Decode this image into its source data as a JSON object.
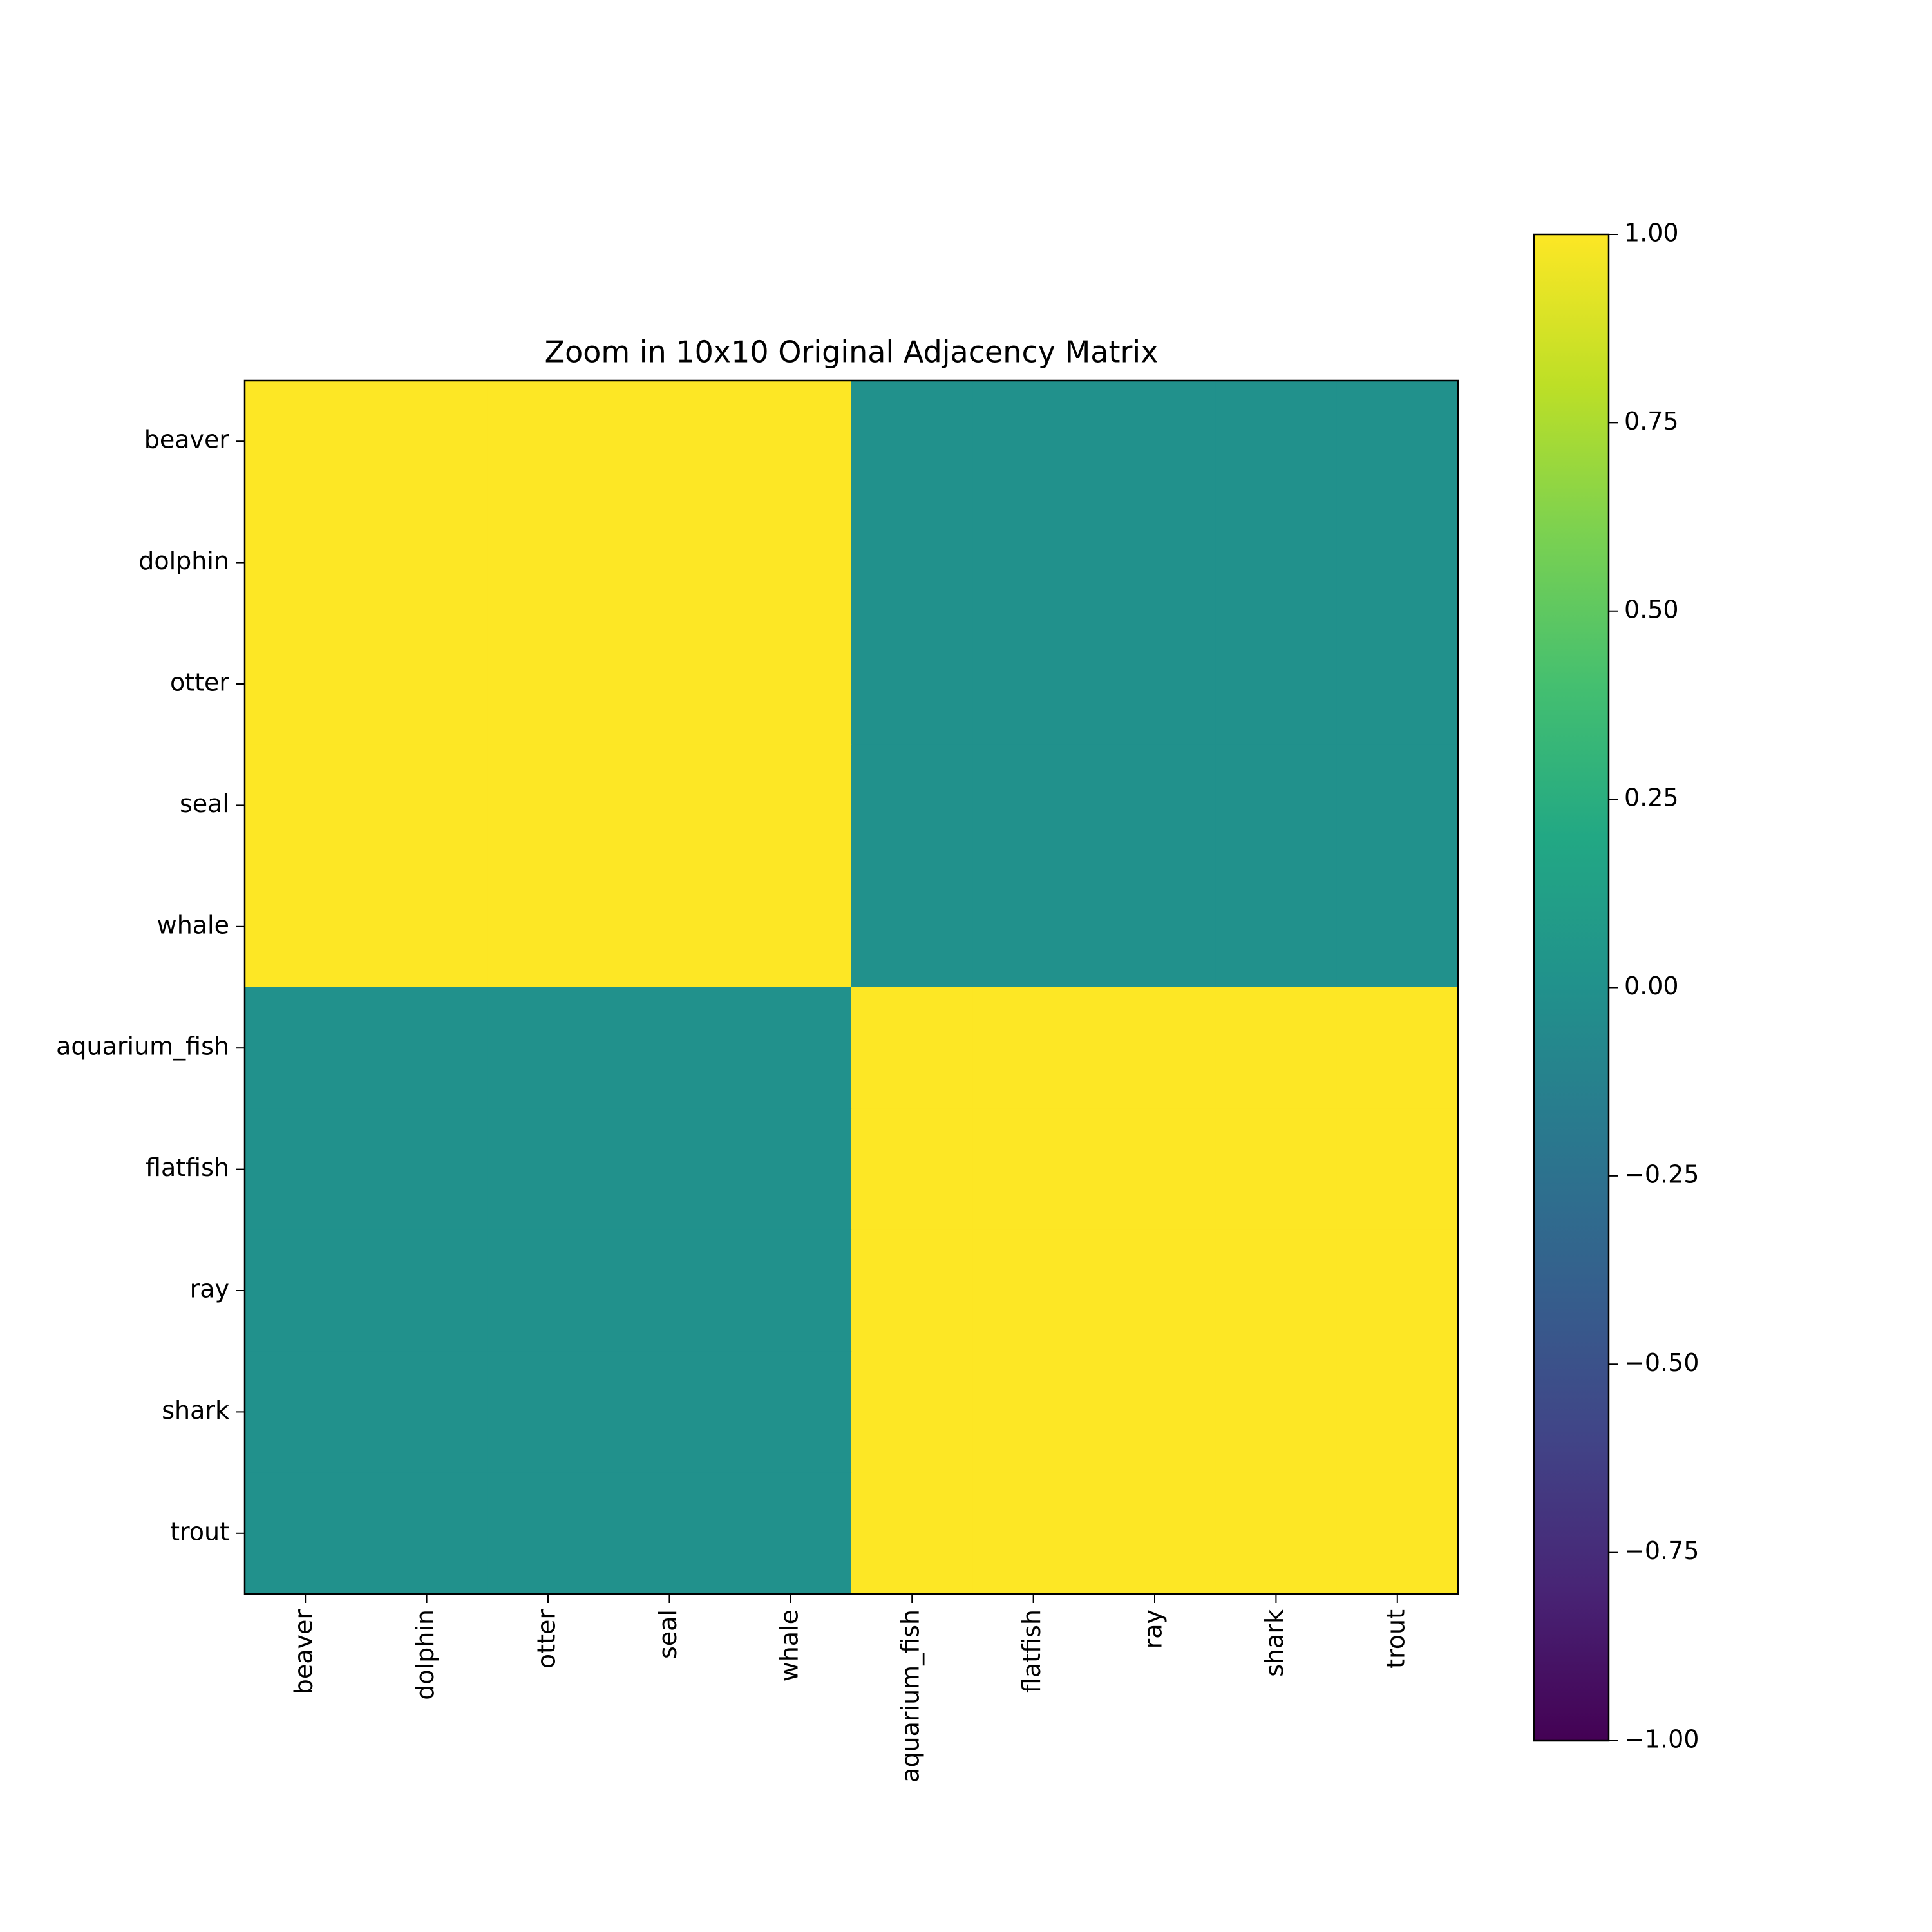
{
  "chart_data": {
    "type": "heatmap",
    "title": "Zoom in 10x10 Original Adjacency Matrix",
    "x_categories": [
      "beaver",
      "dolphin",
      "otter",
      "seal",
      "whale",
      "aquarium_fish",
      "flatfish",
      "ray",
      "shark",
      "trout"
    ],
    "y_categories": [
      "beaver",
      "dolphin",
      "otter",
      "seal",
      "whale",
      "aquarium_fish",
      "flatfish",
      "ray",
      "shark",
      "trout"
    ],
    "z": [
      [
        1,
        1,
        1,
        1,
        1,
        0,
        0,
        0,
        0,
        0
      ],
      [
        1,
        1,
        1,
        1,
        1,
        0,
        0,
        0,
        0,
        0
      ],
      [
        1,
        1,
        1,
        1,
        1,
        0,
        0,
        0,
        0,
        0
      ],
      [
        1,
        1,
        1,
        1,
        1,
        0,
        0,
        0,
        0,
        0
      ],
      [
        1,
        1,
        1,
        1,
        1,
        0,
        0,
        0,
        0,
        0
      ],
      [
        0,
        0,
        0,
        0,
        0,
        1,
        1,
        1,
        1,
        1
      ],
      [
        0,
        0,
        0,
        0,
        0,
        1,
        1,
        1,
        1,
        1
      ],
      [
        0,
        0,
        0,
        0,
        0,
        1,
        1,
        1,
        1,
        1
      ],
      [
        0,
        0,
        0,
        0,
        0,
        1,
        1,
        1,
        1,
        1
      ],
      [
        0,
        0,
        0,
        0,
        0,
        1,
        1,
        1,
        1,
        1
      ]
    ],
    "colormap": "viridis",
    "zlim": [
      -1,
      1
    ],
    "cbar_ticks": [
      {
        "value": -1,
        "label": "−1.00"
      },
      {
        "value": -0.75,
        "label": "−0.75"
      },
      {
        "value": -0.5,
        "label": "−0.50"
      },
      {
        "value": -0.25,
        "label": "−0.25"
      },
      {
        "value": 0,
        "label": "0.00"
      },
      {
        "value": 0.25,
        "label": "0.25"
      },
      {
        "value": 0.5,
        "label": "0.50"
      },
      {
        "value": 0.75,
        "label": "0.75"
      },
      {
        "value": 1,
        "label": "1.00"
      }
    ]
  }
}
